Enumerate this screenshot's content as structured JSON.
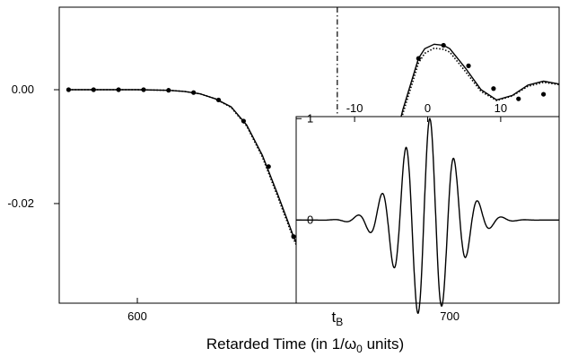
{
  "chart_data": [
    {
      "type": "line",
      "name": "main",
      "title": "",
      "xlabel": "Retarded Time (in 1/ω0 units)",
      "xlabel_parts": {
        "before": "Retarded Time (in 1/",
        "omega": "ω",
        "sub": "0",
        "after": " units)"
      },
      "ylabel": "",
      "xlim": [
        575,
        735
      ],
      "ylim": [
        -0.0375,
        0.0145
      ],
      "xticks": [
        600,
        700
      ],
      "xtick_labels": [
        "600",
        "700"
      ],
      "yticks": [
        0.0,
        -0.02
      ],
      "ytick_labels": [
        "0.00",
        "-0.02"
      ],
      "grid": false,
      "legend": "none",
      "marker_x_label": {
        "main": "t",
        "sub": "B"
      },
      "marker_x_value": 664,
      "series": [
        {
          "style": "solid",
          "x": [
            578,
            590,
            600,
            610,
            615,
            620,
            625,
            630,
            635,
            640,
            645,
            650,
            655,
            660,
            665,
            670,
            675,
            680,
            685,
            690,
            692,
            695,
            698,
            700,
            705,
            710,
            715,
            720,
            725,
            730,
            735
          ],
          "y": [
            0,
            0,
            0,
            -0.0001,
            -0.0003,
            -0.0007,
            -0.0016,
            -0.003,
            -0.0062,
            -0.0115,
            -0.0185,
            -0.0258,
            -0.032,
            -0.0347,
            -0.0348,
            -0.0322,
            -0.025,
            -0.0145,
            -0.0035,
            0.0055,
            0.0072,
            0.008,
            0.0078,
            0.0072,
            0.0038,
            0.0,
            -0.0018,
            -0.001,
            0.0008,
            0.0015,
            0.001
          ]
        },
        {
          "style": "dotted",
          "x": [
            578,
            590,
            600,
            610,
            615,
            620,
            625,
            630,
            635,
            640,
            645,
            650,
            655,
            660,
            665,
            670,
            675,
            680,
            685,
            690,
            692,
            695,
            698,
            700,
            705,
            710,
            715,
            720,
            725,
            730,
            735
          ],
          "y": [
            0,
            0,
            0,
            -0.0001,
            -0.0003,
            -0.0007,
            -0.0016,
            -0.0031,
            -0.0064,
            -0.0118,
            -0.0189,
            -0.0262,
            -0.0325,
            -0.0352,
            -0.0352,
            -0.0327,
            -0.0255,
            -0.0152,
            -0.0042,
            0.0047,
            0.0064,
            0.0073,
            0.0071,
            0.0066,
            0.0032,
            -0.0003,
            -0.0019,
            -0.0011,
            0.0006,
            0.0013,
            0.0009
          ]
        },
        {
          "style": "markers",
          "x": [
            578,
            586,
            594,
            602,
            610,
            618,
            626,
            634,
            642,
            650,
            658,
            666,
            674,
            682,
            690,
            698,
            706,
            714,
            722,
            730
          ],
          "y": [
            0,
            0,
            0,
            0,
            -0.0001,
            -0.0005,
            -0.0018,
            -0.0055,
            -0.0135,
            -0.0258,
            -0.0337,
            -0.0345,
            -0.0265,
            -0.0105,
            0.0055,
            0.0078,
            0.0042,
            0.0002,
            -0.0016,
            -0.0008
          ]
        }
      ]
    },
    {
      "type": "line",
      "name": "inset",
      "title": "",
      "xlabel": "",
      "ylabel": "",
      "xlim": [
        -18,
        18
      ],
      "ylim": [
        -0.82,
        1.02
      ],
      "xticks": [
        -10,
        0,
        10
      ],
      "xtick_labels": [
        "-10",
        "0",
        "10"
      ],
      "yticks": [
        1,
        0
      ],
      "ytick_labels": [
        "1",
        "0"
      ],
      "grid": false,
      "legend": "none",
      "series": [
        {
          "style": "solid",
          "function": "gaussian-modulated cosine pulse"
        }
      ]
    }
  ]
}
